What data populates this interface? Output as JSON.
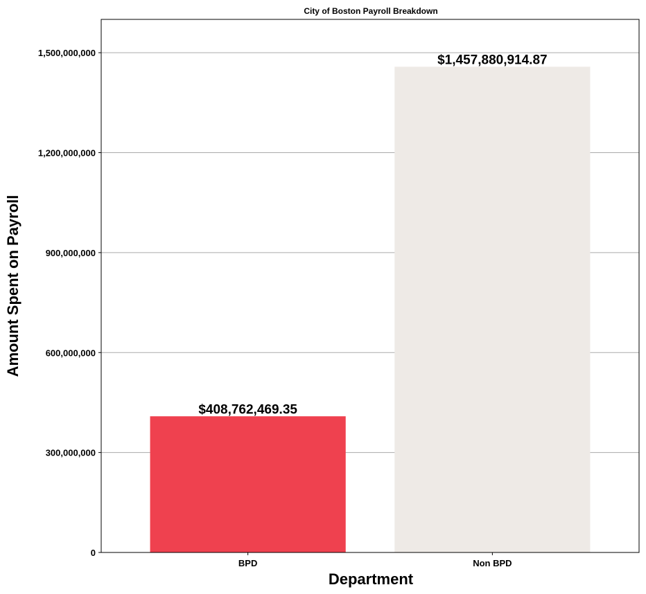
{
  "chart_data": {
    "type": "bar",
    "title": "City of Boston Payroll Breakdown",
    "xlabel": "Department",
    "ylabel": "Amount Spent on Payroll",
    "categories": [
      "BPD",
      "Non BPD"
    ],
    "values": [
      408762469.35,
      1457880914.87
    ],
    "data_labels": [
      "$408,762,469.35",
      "$1,457,880,914.87"
    ],
    "bar_colors": [
      "#ef414f",
      "#eeeae6"
    ],
    "ylim": [
      0,
      1600000000
    ],
    "yticks": [
      0,
      300000000,
      600000000,
      900000000,
      1200000000,
      1500000000
    ],
    "ytick_labels": [
      "0",
      "300,000,000",
      "600,000,000",
      "900,000,000",
      "1,200,000,000",
      "1,500,000,000"
    ],
    "grid": "horizontal",
    "legend": "none"
  }
}
